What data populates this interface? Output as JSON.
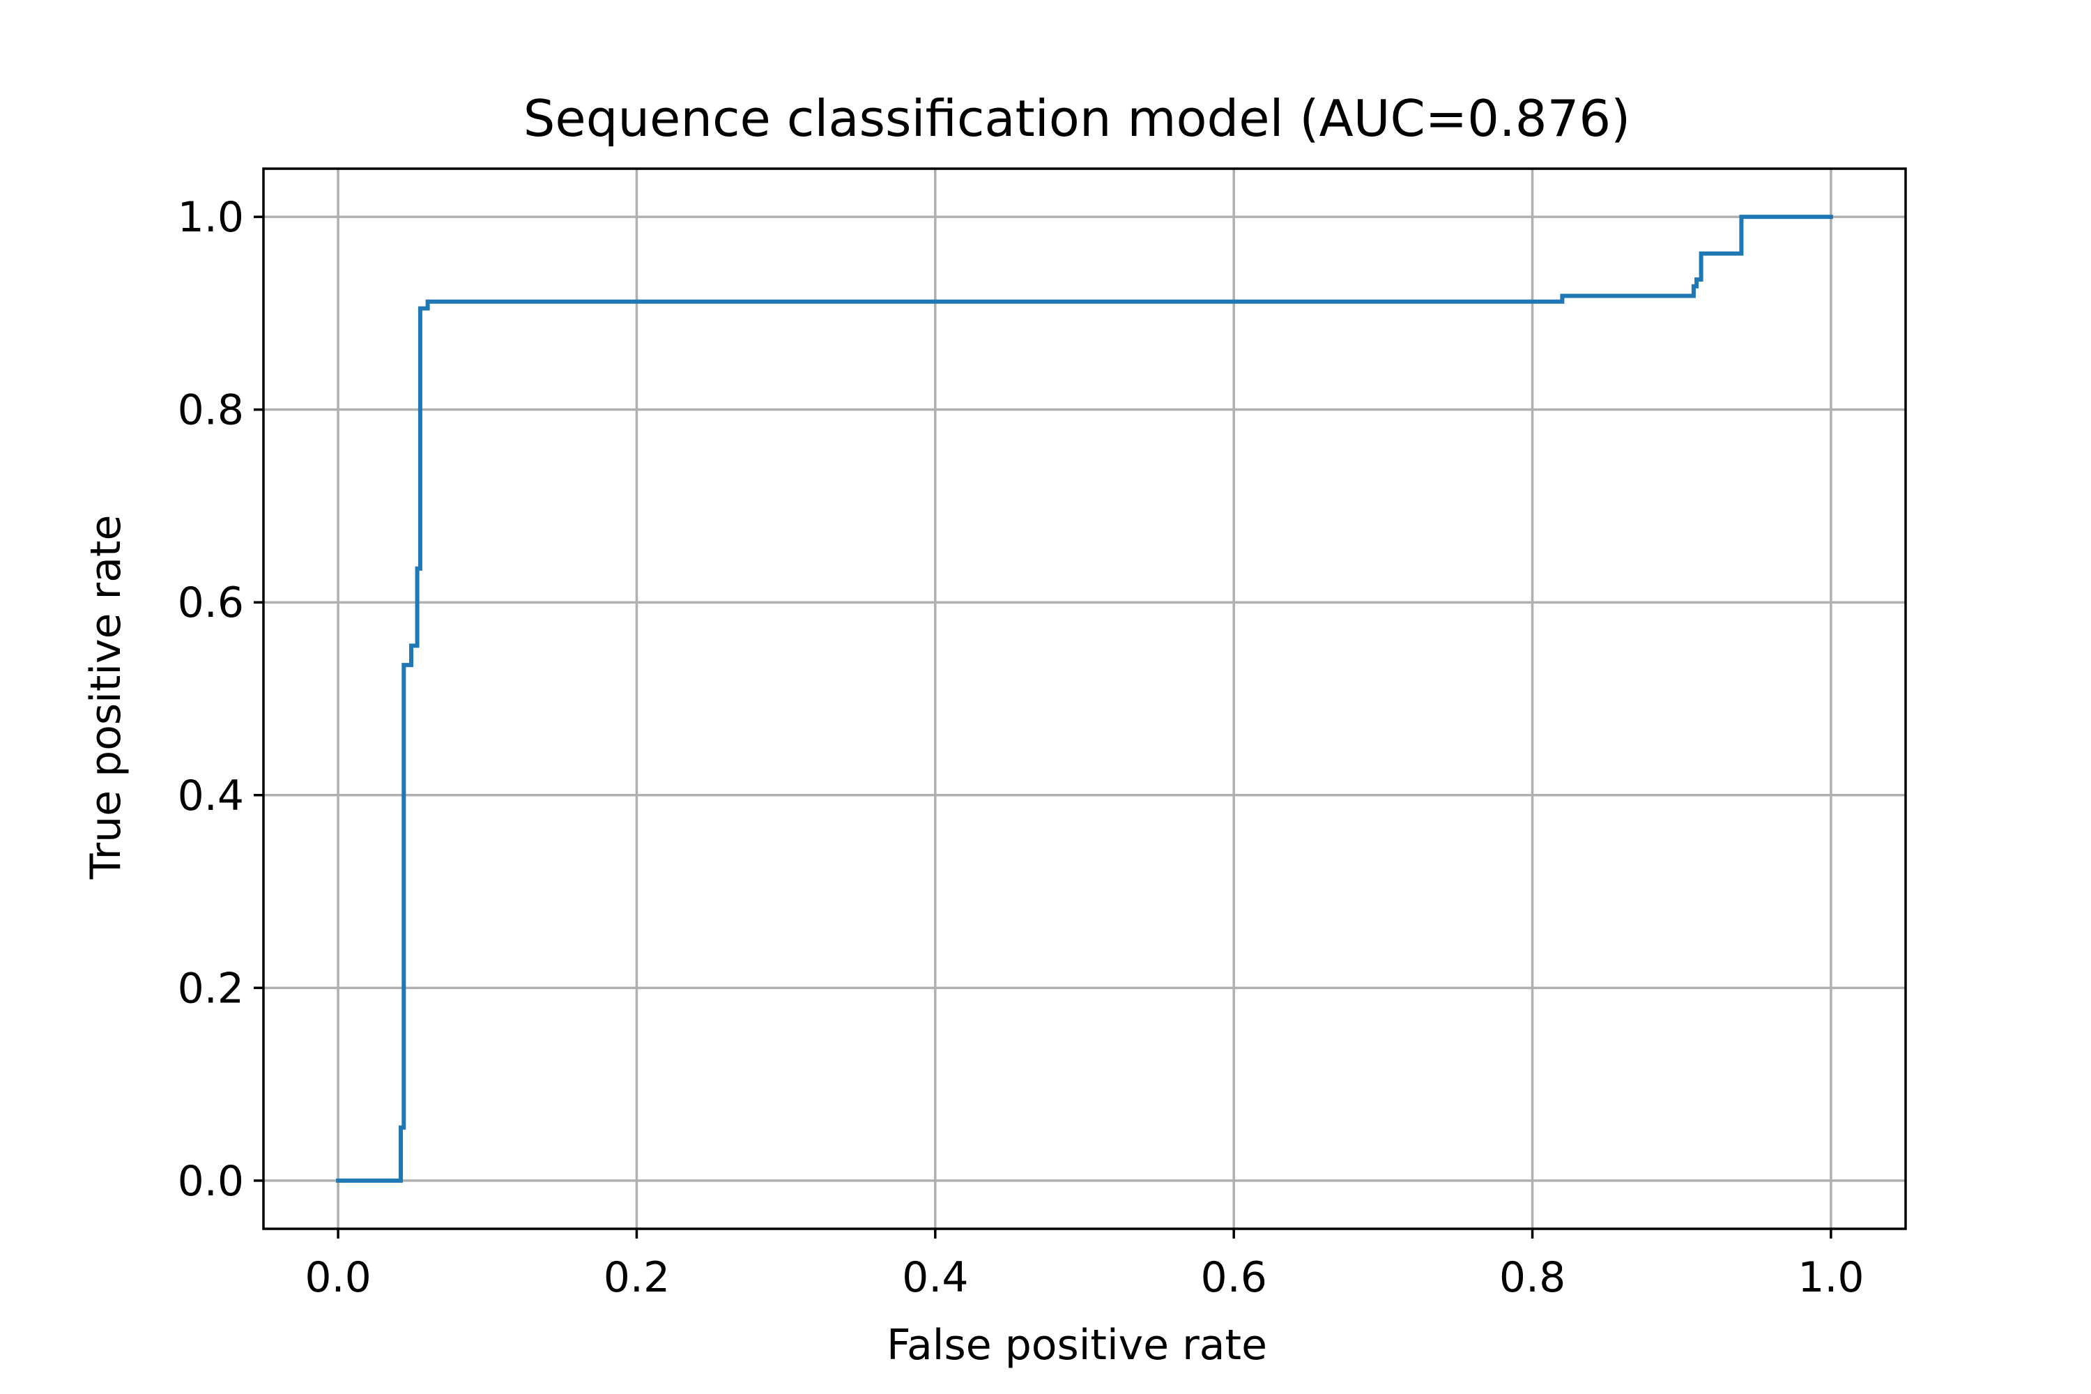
{
  "chart_data": {
    "type": "line",
    "title": "Sequence classification model (AUC=0.876)",
    "xlabel": "False positive rate",
    "ylabel": "True positive rate",
    "xlim": [
      -0.05,
      1.05
    ],
    "ylim": [
      -0.05,
      1.05
    ],
    "xticks": [
      "0.0",
      "0.2",
      "0.4",
      "0.6",
      "0.8",
      "1.0"
    ],
    "yticks": [
      "0.0",
      "0.2",
      "0.4",
      "0.6",
      "0.8",
      "1.0"
    ],
    "grid": true,
    "line_color": "#1f77b4",
    "grid_color": "#b0b0b0",
    "series": [
      {
        "x": [
          0.0,
          0.042,
          0.042,
          0.044,
          0.044,
          0.049,
          0.049,
          0.053,
          0.053,
          0.055,
          0.055,
          0.06,
          0.06,
          0.82,
          0.82,
          0.908,
          0.908,
          0.91,
          0.91,
          0.913,
          0.913,
          0.94,
          0.94,
          1.0
        ],
        "y": [
          0.0,
          0.0,
          0.055,
          0.055,
          0.535,
          0.535,
          0.555,
          0.555,
          0.635,
          0.635,
          0.905,
          0.905,
          0.912,
          0.912,
          0.918,
          0.918,
          0.928,
          0.928,
          0.935,
          0.935,
          0.962,
          0.962,
          1.0,
          1.0
        ]
      }
    ]
  }
}
